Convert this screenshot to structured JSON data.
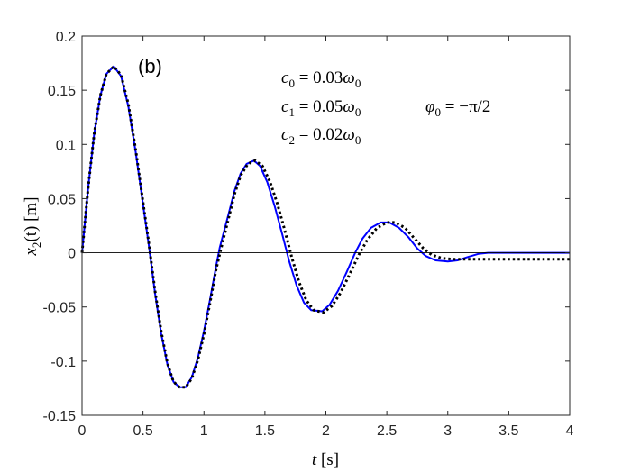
{
  "chart_data": {
    "type": "line",
    "panel_label": "(b)",
    "xlabel": "t [s]",
    "xlabel_var": "t",
    "xlabel_unit": " [s]",
    "ylabel": "x2(t) [m]",
    "ylabel_var": "x",
    "ylabel_sub": "2",
    "ylabel_rest": "(t) [m]",
    "xlim": [
      0,
      4
    ],
    "ylim": [
      -0.15,
      0.2
    ],
    "x_ticks": [
      "0",
      "0.5",
      "1",
      "1.5",
      "2",
      "2.5",
      "3",
      "3.5",
      "4"
    ],
    "y_ticks": [
      "0.2",
      "0.15",
      "0.1",
      "0.05",
      "0",
      "-0.05",
      "-0.1",
      "-0.15"
    ],
    "grid": false,
    "zero_line": true,
    "annotations": {
      "c0": {
        "var": "c",
        "sub": "0",
        "eq": " = 0.03",
        "unit": "ω",
        "unit_sub": "0"
      },
      "c1": {
        "var": "c",
        "sub": "1",
        "eq": " = 0.05",
        "unit": "ω",
        "unit_sub": "0"
      },
      "c2": {
        "var": "c",
        "sub": "2",
        "eq": " = 0.02",
        "unit": "ω",
        "unit_sub": "0"
      },
      "phi": {
        "var": "φ",
        "sub": "0",
        "eq": " = −π/2"
      }
    },
    "series": [
      {
        "style": "solid",
        "color": "#0000ff",
        "points": [
          [
            0,
            0
          ],
          [
            0.05,
            0.06
          ],
          [
            0.1,
            0.11
          ],
          [
            0.15,
            0.145
          ],
          [
            0.2,
            0.165
          ],
          [
            0.26,
            0.172
          ],
          [
            0.32,
            0.163
          ],
          [
            0.38,
            0.135
          ],
          [
            0.44,
            0.093
          ],
          [
            0.5,
            0.045
          ],
          [
            0.55,
            0.005
          ],
          [
            0.6,
            -0.038
          ],
          [
            0.65,
            -0.075
          ],
          [
            0.7,
            -0.103
          ],
          [
            0.75,
            -0.119
          ],
          [
            0.8,
            -0.124
          ],
          [
            0.85,
            -0.124
          ],
          [
            0.9,
            -0.115
          ],
          [
            0.95,
            -0.097
          ],
          [
            1.0,
            -0.072
          ],
          [
            1.05,
            -0.043
          ],
          [
            1.1,
            -0.012
          ],
          [
            1.13,
            0.005
          ],
          [
            1.2,
            0.035
          ],
          [
            1.25,
            0.057
          ],
          [
            1.3,
            0.073
          ],
          [
            1.35,
            0.082
          ],
          [
            1.41,
            0.085
          ],
          [
            1.46,
            0.08
          ],
          [
            1.52,
            0.065
          ],
          [
            1.58,
            0.043
          ],
          [
            1.64,
            0.018
          ],
          [
            1.7,
            -0.008
          ],
          [
            1.76,
            -0.03
          ],
          [
            1.82,
            -0.046
          ],
          [
            1.88,
            -0.053
          ],
          [
            1.97,
            -0.054
          ],
          [
            2.03,
            -0.048
          ],
          [
            2.1,
            -0.035
          ],
          [
            2.17,
            -0.018
          ],
          [
            2.24,
            0.0
          ],
          [
            2.3,
            0.013
          ],
          [
            2.37,
            0.023
          ],
          [
            2.45,
            0.028
          ],
          [
            2.52,
            0.028
          ],
          [
            2.6,
            0.023
          ],
          [
            2.68,
            0.014
          ],
          [
            2.75,
            0.004
          ],
          [
            2.82,
            -0.003
          ],
          [
            2.9,
            -0.007
          ],
          [
            3.0,
            -0.008
          ],
          [
            3.08,
            -0.007
          ],
          [
            3.16,
            -0.004
          ],
          [
            3.25,
            -0.001
          ],
          [
            3.33,
            0.0
          ],
          [
            3.5,
            0.0
          ],
          [
            3.75,
            0.0
          ],
          [
            4.0,
            0.0
          ]
        ]
      },
      {
        "style": "dotted",
        "color": "#000000",
        "points": [
          [
            0,
            0
          ],
          [
            0.05,
            0.06
          ],
          [
            0.1,
            0.11
          ],
          [
            0.15,
            0.145
          ],
          [
            0.2,
            0.165
          ],
          [
            0.26,
            0.172
          ],
          [
            0.32,
            0.164
          ],
          [
            0.38,
            0.137
          ],
          [
            0.44,
            0.095
          ],
          [
            0.5,
            0.047
          ],
          [
            0.55,
            0.007
          ],
          [
            0.6,
            -0.036
          ],
          [
            0.65,
            -0.073
          ],
          [
            0.7,
            -0.102
          ],
          [
            0.75,
            -0.119
          ],
          [
            0.8,
            -0.124
          ],
          [
            0.85,
            -0.124
          ],
          [
            0.9,
            -0.116
          ],
          [
            0.95,
            -0.099
          ],
          [
            1.0,
            -0.075
          ],
          [
            1.05,
            -0.046
          ],
          [
            1.1,
            -0.015
          ],
          [
            1.14,
            0.004
          ],
          [
            1.2,
            0.031
          ],
          [
            1.25,
            0.054
          ],
          [
            1.3,
            0.071
          ],
          [
            1.36,
            0.082
          ],
          [
            1.42,
            0.085
          ],
          [
            1.48,
            0.08
          ],
          [
            1.54,
            0.066
          ],
          [
            1.6,
            0.046
          ],
          [
            1.66,
            0.022
          ],
          [
            1.72,
            -0.004
          ],
          [
            1.78,
            -0.027
          ],
          [
            1.84,
            -0.044
          ],
          [
            1.9,
            -0.053
          ],
          [
            1.98,
            -0.055
          ],
          [
            2.05,
            -0.049
          ],
          [
            2.12,
            -0.037
          ],
          [
            2.19,
            -0.021
          ],
          [
            2.27,
            -0.002
          ],
          [
            2.34,
            0.012
          ],
          [
            2.42,
            0.023
          ],
          [
            2.5,
            0.028
          ],
          [
            2.57,
            0.028
          ],
          [
            2.65,
            0.023
          ],
          [
            2.72,
            0.014
          ],
          [
            2.8,
            0.004
          ],
          [
            2.87,
            -0.002
          ],
          [
            2.95,
            -0.005
          ],
          [
            3.05,
            -0.006
          ],
          [
            3.2,
            -0.006
          ],
          [
            3.5,
            -0.006
          ],
          [
            3.75,
            -0.006
          ],
          [
            4.0,
            -0.006
          ]
        ]
      }
    ]
  }
}
